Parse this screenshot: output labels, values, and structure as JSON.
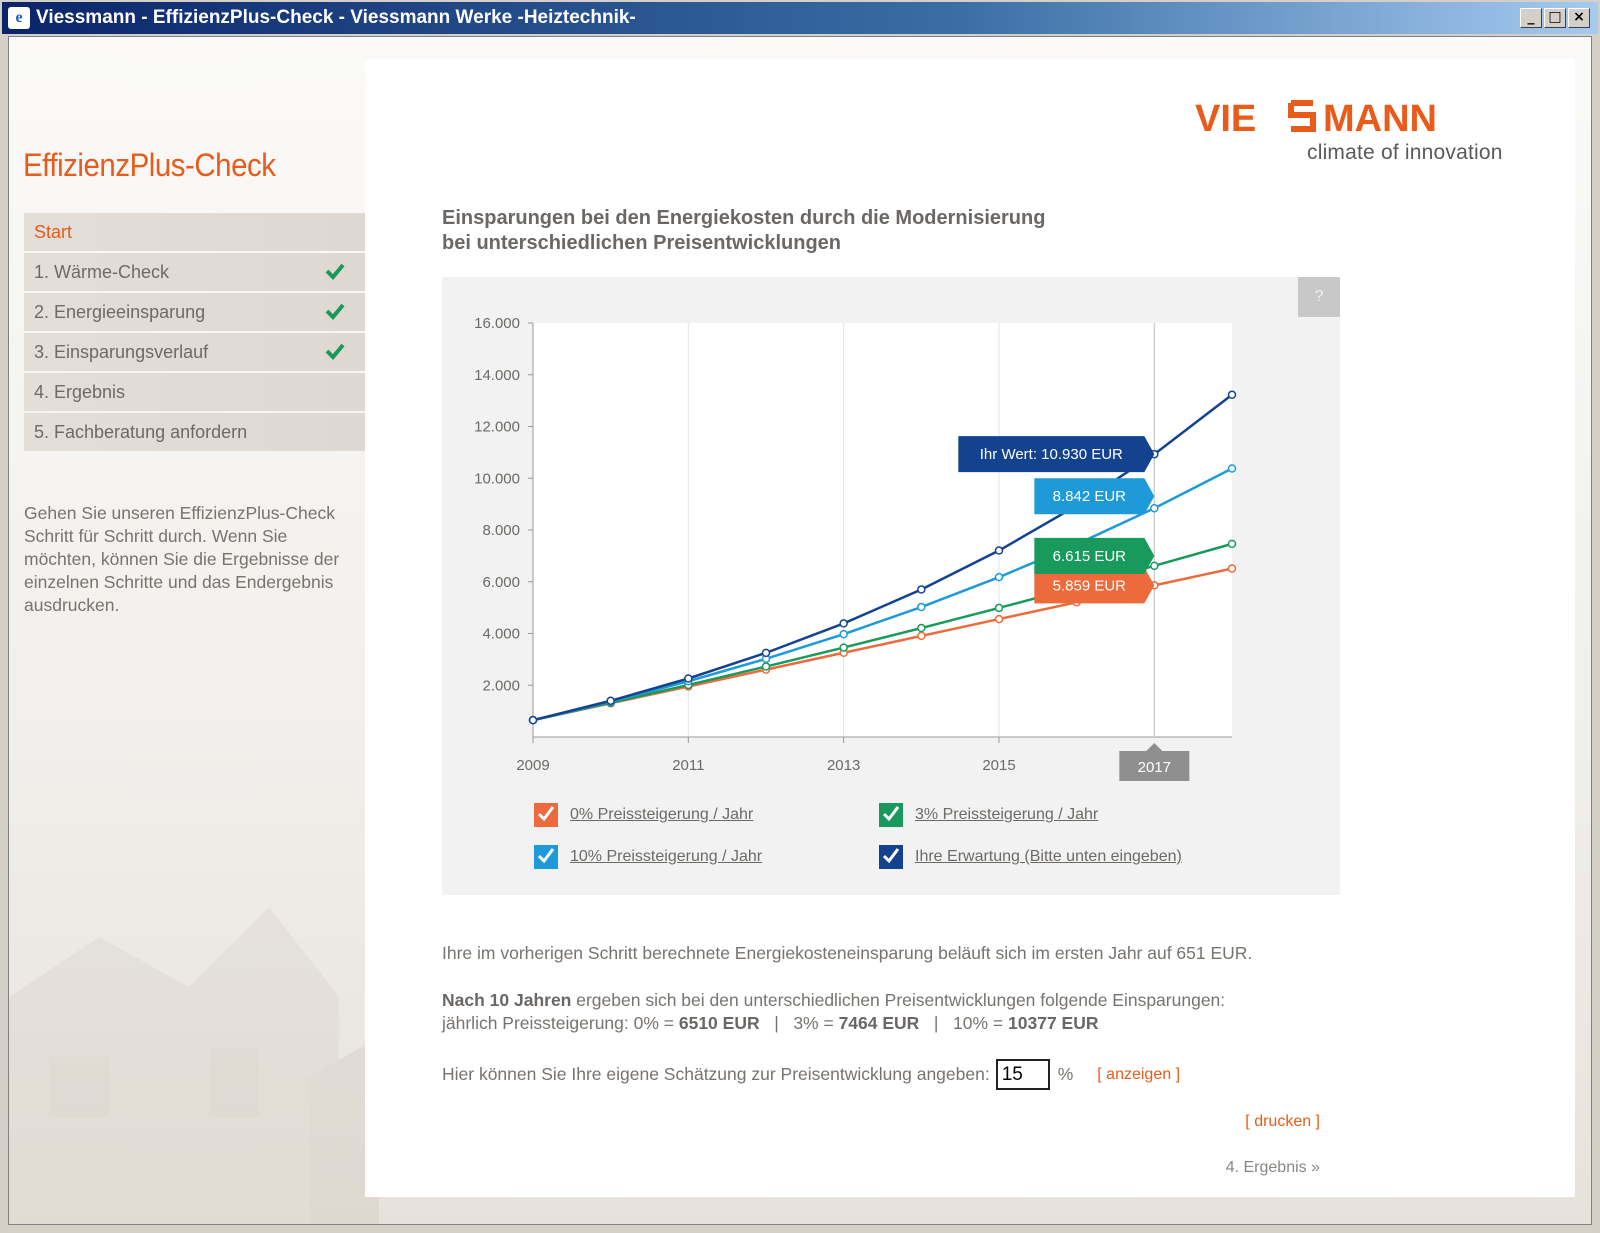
{
  "window": {
    "title": "Viessmann - EffizienzPlus-Check - Viessmann Werke -Heiztechnik-",
    "icon": "ie-page-icon",
    "buttons": [
      "_",
      "□",
      "×"
    ]
  },
  "sidebar": {
    "title": "EffizienzPlus-Check",
    "items": [
      {
        "label": "Start",
        "active": true,
        "done": false
      },
      {
        "label": "1. Wärme-Check",
        "active": false,
        "done": true
      },
      {
        "label": "2. Energieeinsparung",
        "active": false,
        "done": true
      },
      {
        "label": "3. Einsparungsverlauf",
        "active": false,
        "done": true
      },
      {
        "label": "4. Ergebnis",
        "active": false,
        "done": false
      },
      {
        "label": "5. Fachberatung anfordern",
        "active": false,
        "done": false
      }
    ],
    "description": "Gehen Sie unseren EffizienzPlus-Check Schritt für Schritt durch. Wenn Sie möchten, können Sie die Ergebnisse der einzelnen Schritte und das Endergebnis ausdrucken."
  },
  "logo": {
    "word_left": "VIE",
    "word_right": "MANN",
    "tagline": "climate of innovation"
  },
  "heading": {
    "line1": "Einsparungen bei den Energiekosten durch die Modernisierung",
    "line2": "bei unterschiedlichen Preisentwicklungen"
  },
  "help_label": "?",
  "colors": {
    "accent": "#e85b1a",
    "series_0": "#ec6a3b",
    "series_3": "#189a5c",
    "series_10": "#1e9ad8",
    "series_own": "#13428f"
  },
  "chart_data": {
    "type": "line",
    "x": [
      2009,
      2010,
      2011,
      2012,
      2013,
      2014,
      2015,
      2016,
      2017,
      2018
    ],
    "x_ticks": [
      "2009",
      "2011",
      "2013",
      "2015"
    ],
    "y_ticks": [
      "16.000",
      "14.000",
      "12.000",
      "10.000",
      "8.000",
      "6.000",
      "4.000",
      "2.000"
    ],
    "ylim": [
      0,
      16000
    ],
    "highlight_x": "2017",
    "series": [
      {
        "name": "0% Preissteigerung / Jahr",
        "color": "#ec6a3b",
        "values": [
          651,
          1302,
          1953,
          2604,
          3255,
          3906,
          4557,
          5208,
          5859,
          6510
        ],
        "label": "5.859 EUR"
      },
      {
        "name": "3% Preissteigerung / Jahr",
        "color": "#189a5c",
        "values": [
          651,
          1322,
          2012,
          2723,
          3456,
          4211,
          4988,
          5788,
          6615,
          7464
        ],
        "label": "6.615 EUR"
      },
      {
        "name": "10% Preissteigerung / Jahr",
        "color": "#1e9ad8",
        "values": [
          651,
          1367,
          2155,
          3021,
          3974,
          5023,
          6177,
          7447,
          8842,
          10377
        ],
        "label": "8.842 EUR"
      },
      {
        "name": "Ihre Erwartung (Bitte unten eingeben)",
        "color": "#13428f",
        "values": [
          651,
          1400,
          2261,
          3251,
          4390,
          5700,
          7206,
          8938,
          10930,
          13226
        ],
        "label": "Ihr Wert: 10.930 EUR"
      }
    ],
    "grid": true
  },
  "info": {
    "line1": "Ihre im vorherigen Schritt berechnete Energiekosteneinsparung beläuft sich im ersten Jahr auf 651 EUR.",
    "line2_bold": "Nach 10 Jahren",
    "line2_rest": " ergeben sich bei den unterschiedlichen Preisentwicklungen folgende Einsparungen:",
    "line3_prefix": "jährlich Preissteigerung: 0% = ",
    "v0": "6510 EUR",
    "sep1": "   |   3% = ",
    "v3": "7464 EUR",
    "sep2": "   |   10% = ",
    "v10": "10377 EUR"
  },
  "estimate": {
    "label": "Hier können Sie Ihre eigene Schätzung zur Preisentwicklung angeben:",
    "value": "15",
    "unit": "%",
    "show_link": "[ anzeigen ]"
  },
  "print_link": "[ drucken ]",
  "next_link": "4. Ergebnis »"
}
